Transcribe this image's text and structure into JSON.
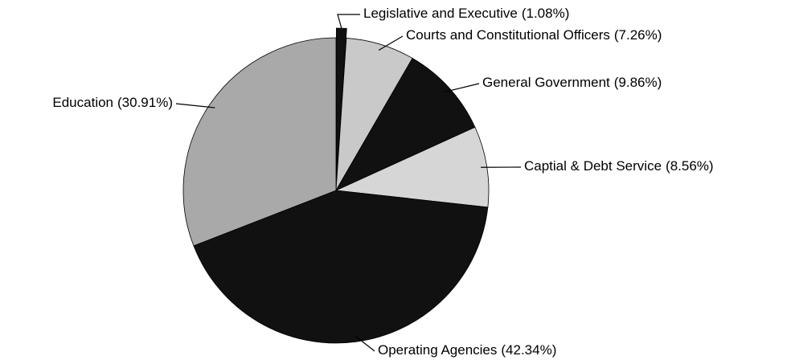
{
  "chart_data": {
    "type": "pie",
    "categories": [
      "Legislative and Executive",
      "Courts and Constitutional Officers",
      "General Government",
      "Captial & Debt Service",
      "Operating Agencies",
      "Education"
    ],
    "values": [
      1.08,
      7.26,
      9.86,
      8.56,
      42.34,
      30.91
    ],
    "value_labels": [
      "(1.08%)",
      "(7.26%)",
      "(9.86%)",
      "(8.56%)",
      "(42.34%)",
      "(30.91%)"
    ],
    "colors": [
      "#111111",
      "#c9c9c9",
      "#111111",
      "#d6d6d6",
      "#111111",
      "#a9a9a9"
    ]
  }
}
